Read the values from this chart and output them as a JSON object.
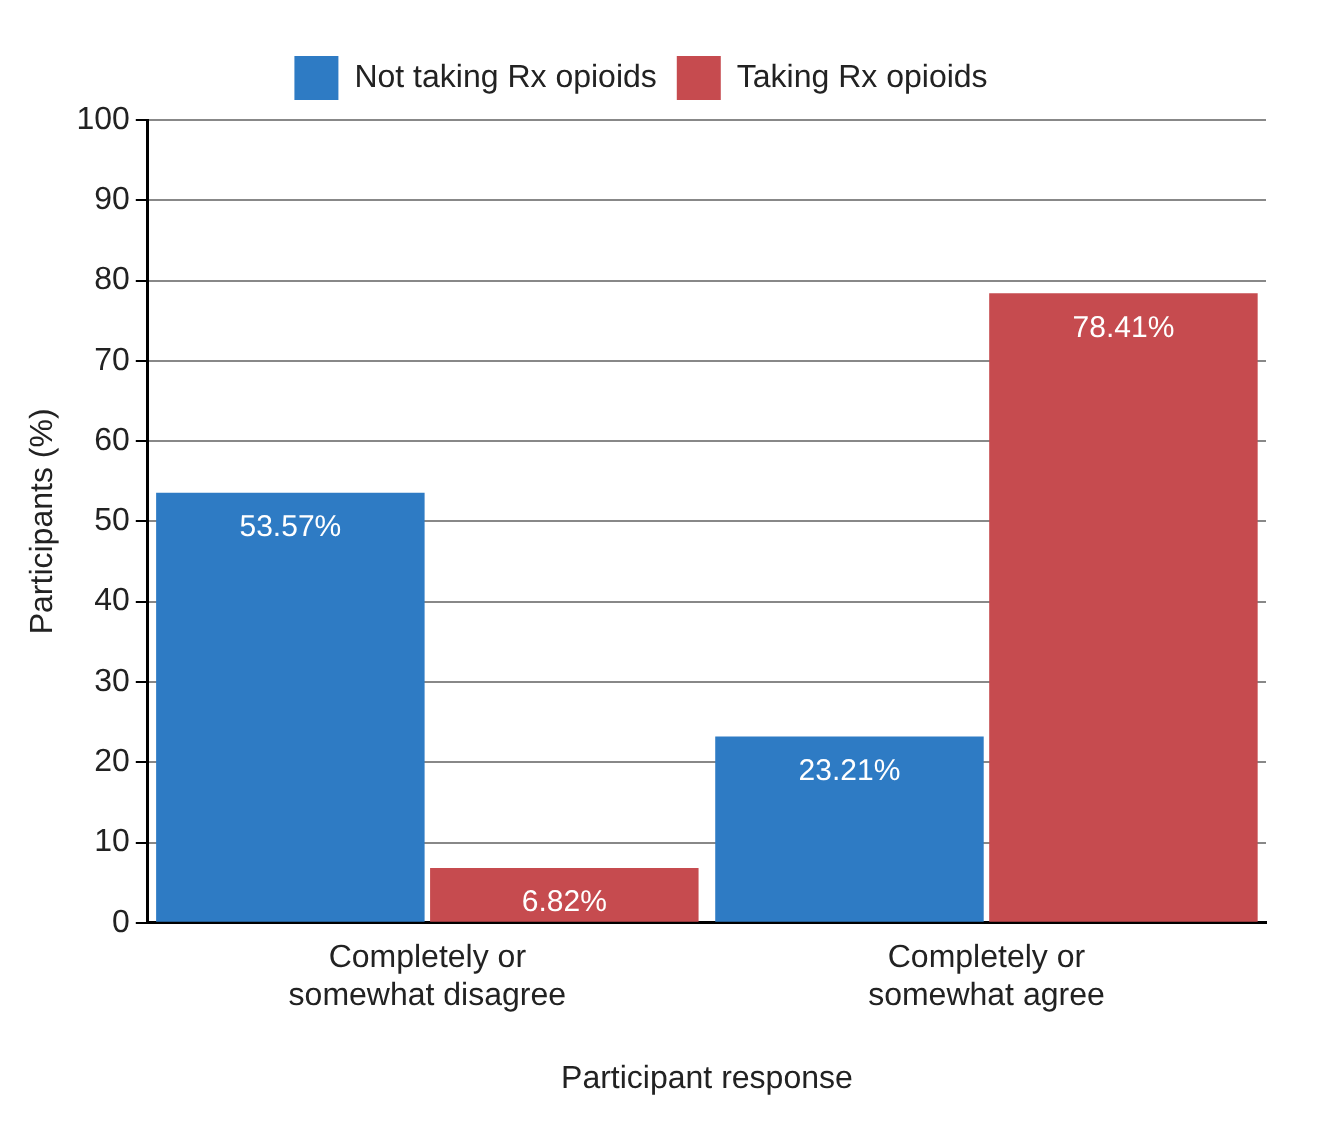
{
  "chart_data": {
    "type": "bar",
    "xlabel": "Participant response",
    "ylabel": "Participants (%)",
    "categories": [
      "Completely or somewhat disagree",
      "Completely or somewhat agree"
    ],
    "series": [
      {
        "name": "Not taking Rx opioids",
        "color": "#2e7bc4",
        "values": [
          53.57,
          23.21
        ],
        "value_labels": [
          "53.57%",
          "23.21%"
        ]
      },
      {
        "name": "Taking Rx opioids",
        "color": "#c64b4f",
        "values": [
          6.82,
          78.41
        ],
        "value_labels": [
          "6.82%",
          "78.41%"
        ]
      }
    ],
    "ylim": [
      0,
      100
    ],
    "yticks": [
      0,
      10,
      20,
      30,
      40,
      50,
      60,
      70,
      80,
      90,
      100
    ],
    "grid": "y",
    "legend": "top"
  }
}
